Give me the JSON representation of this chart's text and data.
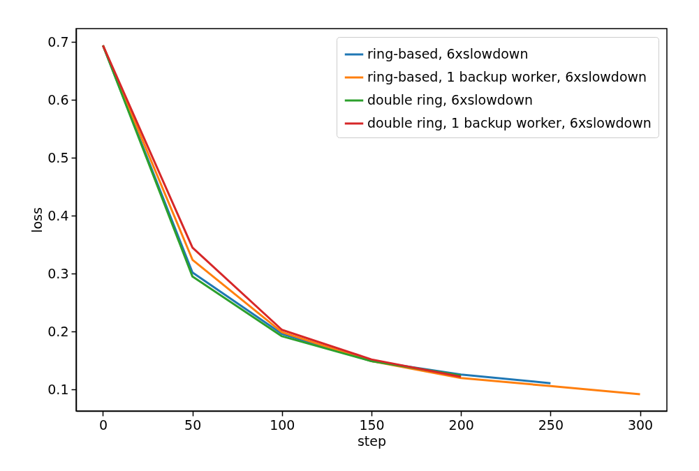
{
  "chart_data": {
    "type": "line",
    "xlabel": "step",
    "ylabel": "loss",
    "xlim": [
      -15,
      315
    ],
    "ylim": [
      0.063,
      0.723
    ],
    "xticks": [
      0,
      50,
      100,
      150,
      200,
      250,
      300
    ],
    "yticks": [
      0.1,
      0.2,
      0.3,
      0.4,
      0.5,
      0.6,
      0.7
    ],
    "grid": false,
    "legend": "top right",
    "marker": "none",
    "line_style": "solid",
    "series": [
      {
        "name": "ring-based, 6xslowdown",
        "color": "#1f77b4",
        "x": [
          0,
          50,
          100,
          150,
          200,
          250
        ],
        "values": [
          0.694,
          0.302,
          0.196,
          0.149,
          0.126,
          0.111
        ]
      },
      {
        "name": "ring-based, 1 backup worker, 6xslowdown",
        "color": "#ff7f0e",
        "x": [
          0,
          50,
          100,
          150,
          200,
          250,
          300
        ],
        "values": [
          0.694,
          0.324,
          0.199,
          0.149,
          0.12,
          0.106,
          0.092
        ]
      },
      {
        "name": "double ring, 6xslowdown",
        "color": "#2ca02c",
        "x": [
          0,
          50,
          100,
          150,
          200
        ],
        "values": [
          0.694,
          0.295,
          0.192,
          0.149,
          0.124
        ]
      },
      {
        "name": "double ring, 1 backup worker, 6xslowdown",
        "color": "#d62728",
        "x": [
          0,
          50,
          100,
          150,
          200
        ],
        "values": [
          0.694,
          0.345,
          0.203,
          0.152,
          0.122
        ]
      }
    ]
  }
}
